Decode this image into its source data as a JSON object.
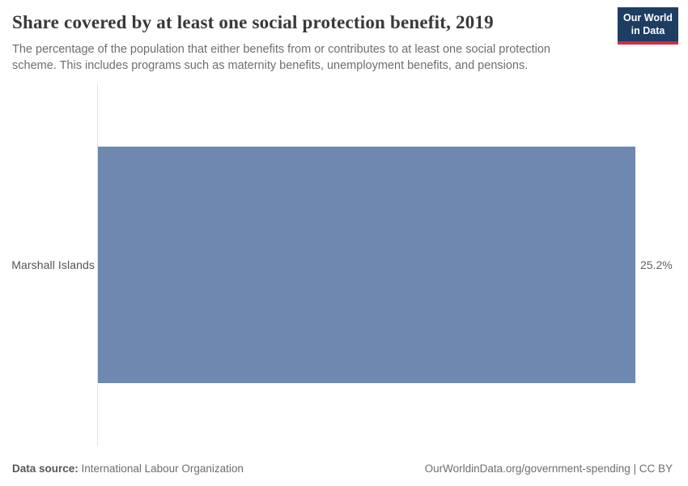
{
  "header": {
    "title": "Share covered by at least one social protection benefit, 2019",
    "subtitle": "The percentage of the population that either benefits from or contributes to at least one social protection scheme. This includes programs such as maternity benefits, unemployment benefits, and pensions.",
    "logo": {
      "line1": "Our World",
      "line2": "in Data"
    }
  },
  "chart": {
    "entity_label": "Marshall Islands",
    "value_label": "25.2%"
  },
  "chart_data": {
    "type": "bar",
    "orientation": "horizontal",
    "categories": [
      "Marshall Islands"
    ],
    "values": [
      25.2
    ],
    "value_labels": [
      "25.2%"
    ],
    "title": "Share covered by at least one social protection benefit, 2019",
    "xlabel": "",
    "ylabel": "",
    "xlim": [
      0,
      25.2
    ],
    "grid": false,
    "legend": false,
    "bar_color": "#6f88b0",
    "axis_color": "#e2e2e2"
  },
  "footer": {
    "source_label": "Data source:",
    "source_value": " International Labour Organization",
    "right_text": "OurWorldinData.org/government-spending | CC BY"
  },
  "colors": {
    "bar": "#6f88b0",
    "logo_background": "#1d3d63",
    "logo_accent": "#cf2e41",
    "axis_line": "#e2e2e2"
  }
}
